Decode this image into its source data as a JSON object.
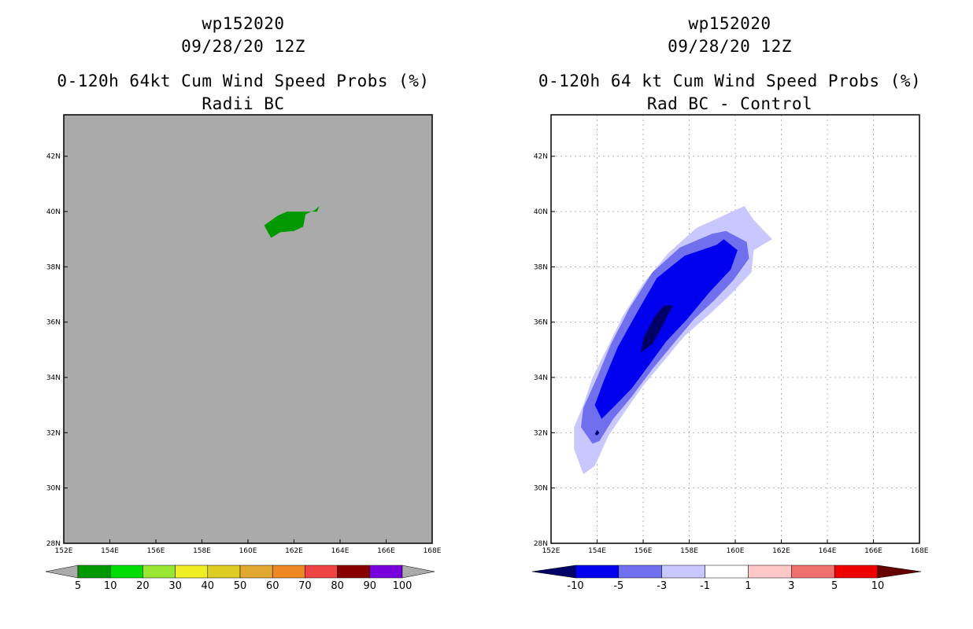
{
  "chart_data": [
    {
      "type": "map-contour",
      "title_lines": [
        "wp152020",
        "09/28/20 12Z",
        "0-120h 64kt Cum Wind Speed Probs (%)",
        "Radii BC"
      ],
      "background_color": "#aaaaaa",
      "lon_range": [
        152,
        168
      ],
      "lat_range": [
        28,
        43.5
      ],
      "x_ticks": [
        "152E",
        "154E",
        "156E",
        "158E",
        "160E",
        "162E",
        "164E",
        "166E",
        "168E"
      ],
      "y_ticks": [
        "28N",
        "30N",
        "32N",
        "34N",
        "36N",
        "38N",
        "40N",
        "42N"
      ],
      "grid": false,
      "fields": [
        {
          "name": "prob 5-10%",
          "color": "#009900",
          "polygon": [
            [
              161.0,
              39.05
            ],
            [
              161.4,
              39.25
            ],
            [
              162.0,
              39.3
            ],
            [
              162.4,
              39.45
            ],
            [
              162.5,
              39.9
            ],
            [
              162.9,
              40.05
            ],
            [
              163.1,
              40.2
            ],
            [
              163.0,
              40.0
            ],
            [
              162.45,
              40.0
            ],
            [
              161.7,
              40.0
            ],
            [
              161.3,
              39.85
            ],
            [
              160.7,
              39.5
            ]
          ]
        }
      ],
      "colorbar": {
        "colors": [
          "#aaaaaa",
          "#009900",
          "#00dd00",
          "#99e632",
          "#eeee22",
          "#ddcc22",
          "#e0a830",
          "#ee8822",
          "#ee4444",
          "#880000",
          "#7700dd",
          "#aaaaaa"
        ],
        "labels": [
          "5",
          "10",
          "20",
          "30",
          "40",
          "50",
          "60",
          "70",
          "80",
          "90",
          "100"
        ]
      }
    },
    {
      "type": "map-contour",
      "title_lines": [
        "wp152020",
        "09/28/20 12Z",
        "0-120h 64 kt Cum Wind Speed Probs (%)",
        "Rad BC - Control"
      ],
      "background_color": "#ffffff",
      "lon_range": [
        152,
        168
      ],
      "lat_range": [
        28,
        43.5
      ],
      "x_ticks": [
        "152E",
        "154E",
        "156E",
        "158E",
        "160E",
        "162E",
        "164E",
        "166E",
        "168E"
      ],
      "y_ticks": [
        "28N",
        "30N",
        "32N",
        "34N",
        "36N",
        "38N",
        "40N",
        "42N"
      ],
      "grid": true,
      "fields": [
        {
          "name": "-1 to -3",
          "color": "#c8c8ff",
          "polygon": [
            [
              153.4,
              30.5
            ],
            [
              153.0,
              31.4
            ],
            [
              153.0,
              32.2
            ],
            [
              153.4,
              33.0
            ],
            [
              153.8,
              34.0
            ],
            [
              154.4,
              35.0
            ],
            [
              155.1,
              36.2
            ],
            [
              156.0,
              37.4
            ],
            [
              157.1,
              38.5
            ],
            [
              158.3,
              39.4
            ],
            [
              159.6,
              39.9
            ],
            [
              160.4,
              40.2
            ],
            [
              160.8,
              39.7
            ],
            [
              161.6,
              39.0
            ],
            [
              160.8,
              38.6
            ],
            [
              160.7,
              37.8
            ],
            [
              159.8,
              37.0
            ],
            [
              158.9,
              36.3
            ],
            [
              157.8,
              35.5
            ],
            [
              156.8,
              34.5
            ],
            [
              156.0,
              33.7
            ],
            [
              155.4,
              33.0
            ],
            [
              154.5,
              31.9
            ],
            [
              153.9,
              30.8
            ]
          ]
        },
        {
          "name": "-3 to -5",
          "color": "#7070ee",
          "polygon": [
            [
              153.8,
              31.6
            ],
            [
              153.3,
              32.2
            ],
            [
              153.4,
              32.9
            ],
            [
              154.0,
              34.0
            ],
            [
              154.6,
              35.2
            ],
            [
              155.4,
              36.5
            ],
            [
              156.4,
              37.8
            ],
            [
              157.6,
              38.7
            ],
            [
              159.0,
              39.2
            ],
            [
              159.6,
              39.3
            ],
            [
              160.5,
              38.9
            ],
            [
              160.6,
              38.3
            ],
            [
              159.9,
              37.5
            ],
            [
              159.1,
              36.8
            ],
            [
              158.2,
              36.1
            ],
            [
              157.3,
              35.2
            ],
            [
              156.4,
              34.3
            ],
            [
              155.5,
              33.3
            ],
            [
              154.7,
              32.5
            ],
            [
              154.1,
              31.7
            ]
          ]
        },
        {
          "name": "-5 to -10",
          "color": "#0000ee",
          "polygon": [
            [
              154.2,
              32.5
            ],
            [
              153.9,
              33.0
            ],
            [
              154.3,
              33.9
            ],
            [
              154.9,
              35.1
            ],
            [
              155.7,
              36.3
            ],
            [
              156.6,
              37.6
            ],
            [
              157.8,
              38.4
            ],
            [
              159.2,
              38.8
            ],
            [
              159.5,
              39.0
            ],
            [
              160.1,
              38.6
            ],
            [
              159.8,
              37.9
            ],
            [
              158.9,
              37.1
            ],
            [
              157.9,
              36.1
            ],
            [
              157.0,
              35.3
            ],
            [
              156.3,
              34.5
            ],
            [
              155.5,
              33.6
            ],
            [
              154.8,
              33.0
            ]
          ]
        },
        {
          "name": "below -10",
          "color": "#000066",
          "polygon": [
            [
              155.9,
              34.9
            ],
            [
              156.0,
              35.4
            ],
            [
              156.5,
              36.2
            ],
            [
              156.9,
              36.6
            ],
            [
              157.3,
              36.6
            ],
            [
              157.1,
              36.3
            ],
            [
              156.8,
              35.8
            ],
            [
              156.4,
              35.2
            ]
          ]
        },
        {
          "name": "below -10 speck",
          "color": "#000066",
          "polygon": [
            [
              153.9,
              31.95
            ],
            [
              154.0,
              32.1
            ],
            [
              154.1,
              32.0
            ],
            [
              154.0,
              31.9
            ]
          ]
        }
      ],
      "colorbar": {
        "colors": [
          "#000066",
          "#0000ee",
          "#7070ee",
          "#c8c8ff",
          "#ffffff",
          "#ffc8c8",
          "#f07070",
          "#ee0000",
          "#660000"
        ],
        "labels": [
          "-10",
          "-5",
          "-3",
          "-1",
          "1",
          "3",
          "5",
          "10"
        ]
      }
    }
  ]
}
